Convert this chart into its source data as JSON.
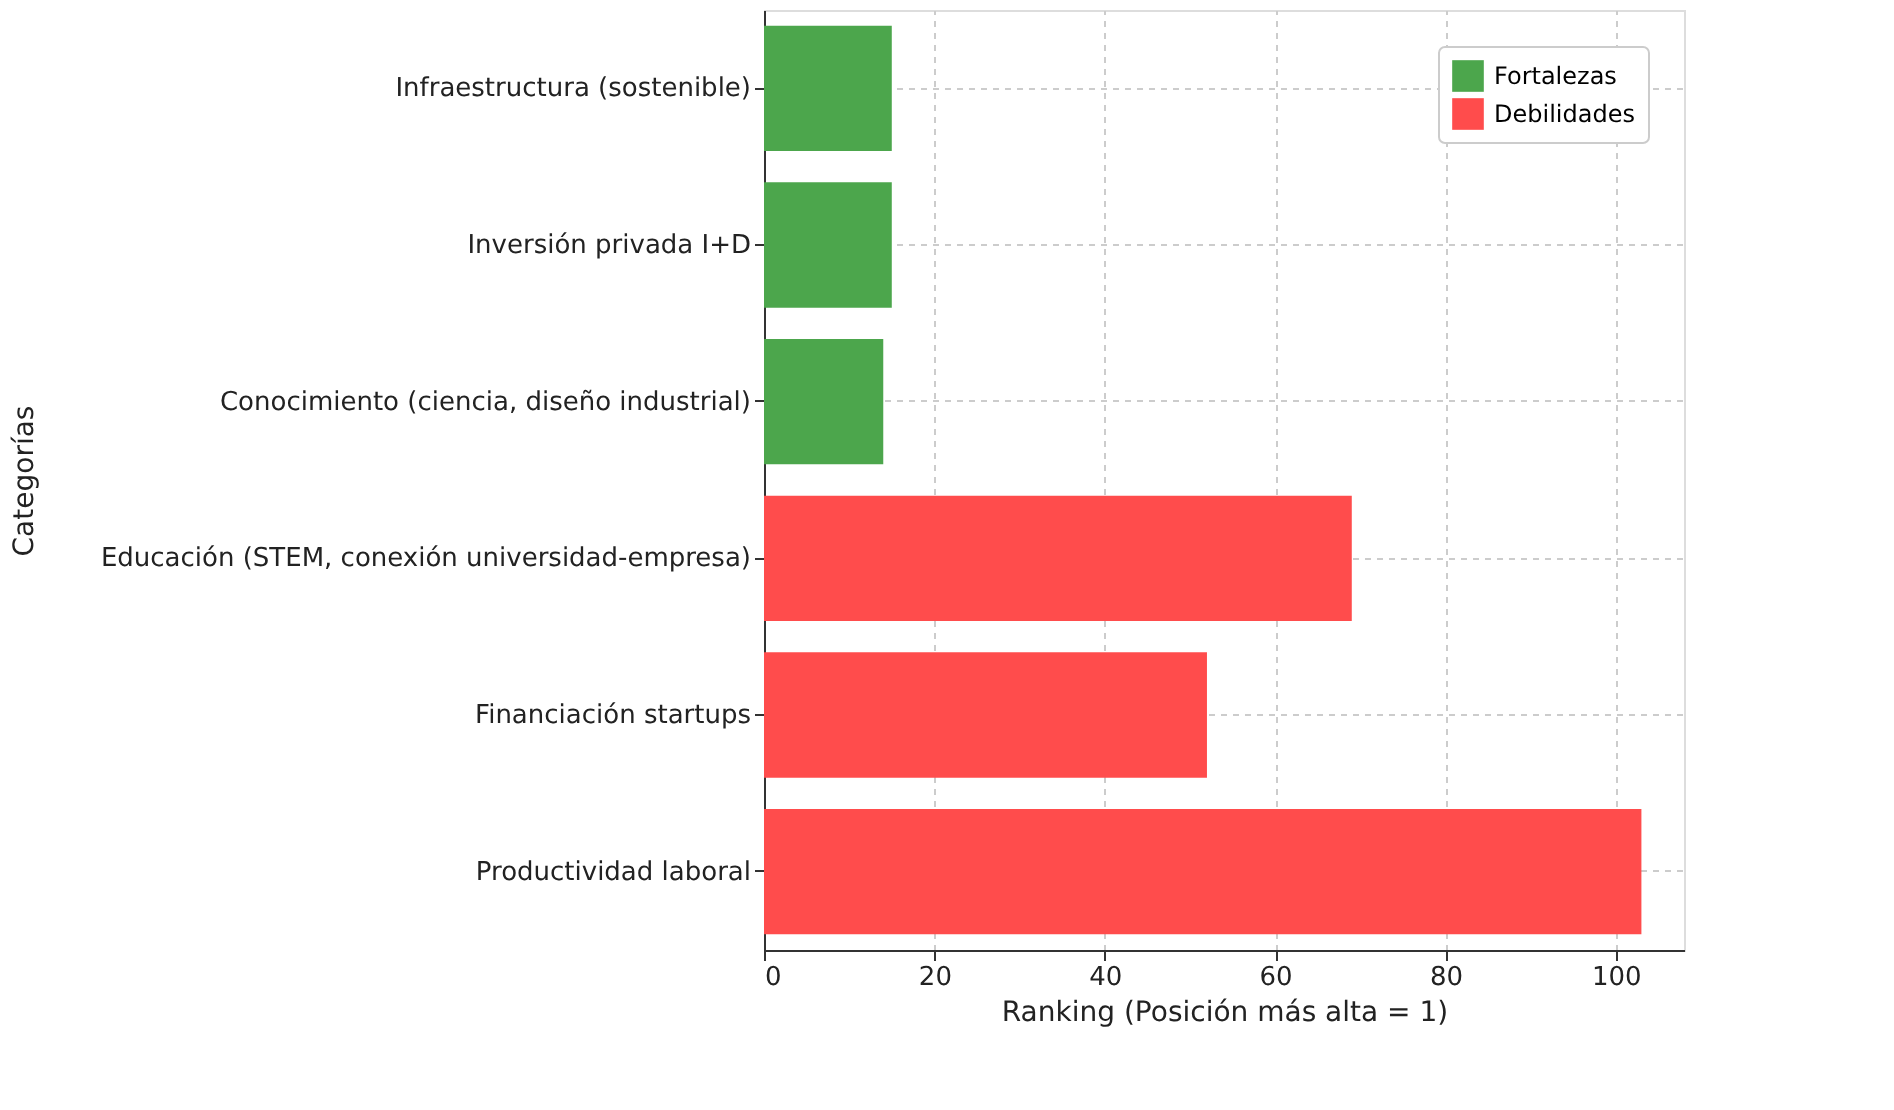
{
  "chart_data": {
    "type": "bar",
    "orientation": "horizontal",
    "xlabel": "Ranking (Posición más alta = 1)",
    "ylabel": "Categorías",
    "categories": [
      "Infraestructura (sostenible)",
      "Inversión privada I+D",
      "Conocimiento (ciencia, diseño industrial)",
      "Educación (STEM, conexión universidad-empresa)",
      "Financiación startups",
      "Productividad laboral"
    ],
    "series": [
      {
        "name": "Fortalezas",
        "color": "#4ca64c",
        "values": [
          15,
          15,
          14,
          null,
          null,
          null
        ]
      },
      {
        "name": "Debilidades",
        "color": "#ff4c4c",
        "values": [
          null,
          null,
          null,
          69,
          52,
          103
        ]
      }
    ],
    "xlim": [
      0,
      108
    ],
    "xticks": [
      0,
      20,
      40,
      60,
      80,
      100
    ],
    "grid": true,
    "legend": "top right"
  }
}
